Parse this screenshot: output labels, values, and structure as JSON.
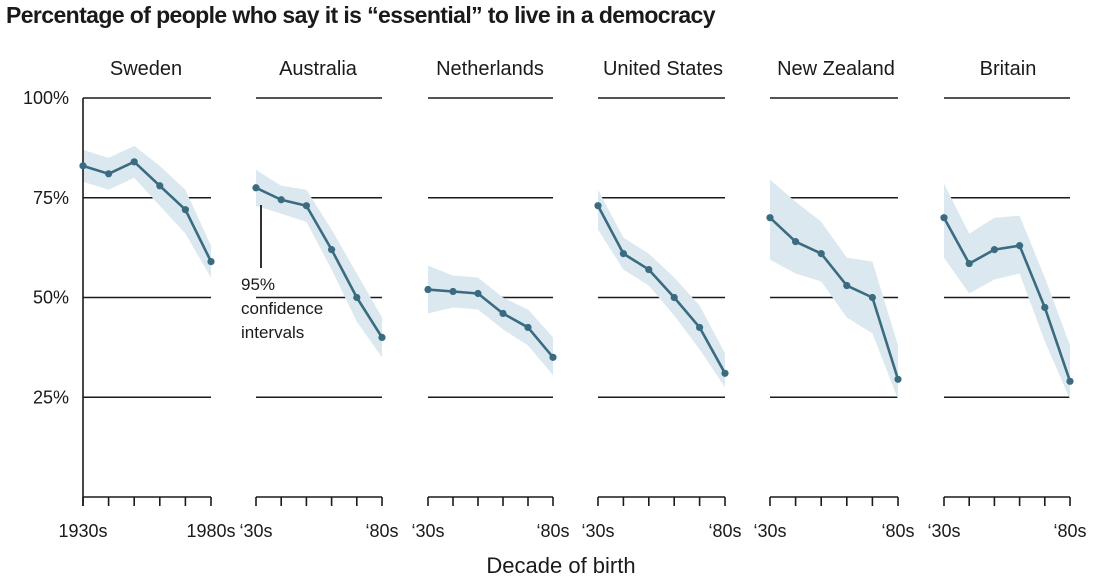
{
  "title": "Percentage of people who say it is “essential” to live in a democracy",
  "colors": {
    "line": "#3a6b80",
    "band": "#dbe8f0",
    "grid": "#1a1a1a",
    "text": "#1a1a1a"
  },
  "chart_data": {
    "type": "line",
    "title": "Percentage of people who say it is “essential” to live in a democracy",
    "xlabel": "Decade of birth",
    "ylabel": "",
    "x": [
      1930,
      1940,
      1950,
      1960,
      1970,
      1980
    ],
    "ylim": [
      0,
      100
    ],
    "yticks": [
      25,
      50,
      75,
      100
    ],
    "ytick_labels": [
      "25%",
      "50%",
      "75%",
      "100%"
    ],
    "grid": true,
    "panels": [
      {
        "name": "Sweden",
        "xtick_labels": [
          "1930s",
          "1980s"
        ],
        "values": [
          83,
          81,
          84,
          78,
          72,
          59
        ],
        "ci_low": [
          79,
          77,
          80,
          73,
          66,
          55
        ],
        "ci_high": [
          87,
          85,
          88,
          83,
          77,
          63
        ]
      },
      {
        "name": "Australia",
        "xtick_labels": [
          "‘30s",
          "‘80s"
        ],
        "values": [
          77.5,
          74.5,
          73,
          62,
          50,
          40
        ],
        "ci_low": [
          73,
          71,
          69,
          57,
          44,
          35
        ],
        "ci_high": [
          82,
          78,
          77,
          67,
          56,
          45
        ]
      },
      {
        "name": "Netherlands",
        "xtick_labels": [
          "‘30s",
          "‘80s"
        ],
        "values": [
          52,
          51.5,
          51,
          46,
          42.5,
          35
        ],
        "ci_low": [
          46,
          47.5,
          47,
          42,
          38,
          30.5
        ],
        "ci_high": [
          58,
          55.5,
          55,
          50,
          47,
          40
        ]
      },
      {
        "name": "United States",
        "xtick_labels": [
          "‘30s",
          "‘80s"
        ],
        "values": [
          73,
          61,
          57,
          50,
          42.5,
          31
        ],
        "ci_low": [
          67,
          57,
          53,
          45.5,
          37,
          27.5
        ],
        "ci_high": [
          77,
          65,
          61,
          55,
          48,
          36
        ]
      },
      {
        "name": "New Zealand",
        "xtick_labels": [
          "‘30s",
          "‘80s"
        ],
        "values": [
          70,
          64,
          61,
          53,
          50,
          29.5
        ],
        "ci_low": [
          59.5,
          56,
          54,
          45,
          41,
          24.5
        ],
        "ci_high": [
          79.5,
          74,
          69,
          60,
          59,
          38
        ]
      },
      {
        "name": "Britain",
        "xtick_labels": [
          "‘30s",
          "‘80s"
        ],
        "values": [
          70,
          58.5,
          62,
          63,
          47.5,
          29
        ],
        "ci_low": [
          60,
          51,
          54.5,
          56,
          39,
          24.5
        ],
        "ci_high": [
          78.5,
          66,
          70,
          70.5,
          55,
          38
        ]
      }
    ],
    "annotations": [
      {
        "panel": "Australia",
        "lines": [
          "95%",
          "confidence",
          "intervals"
        ]
      }
    ]
  }
}
